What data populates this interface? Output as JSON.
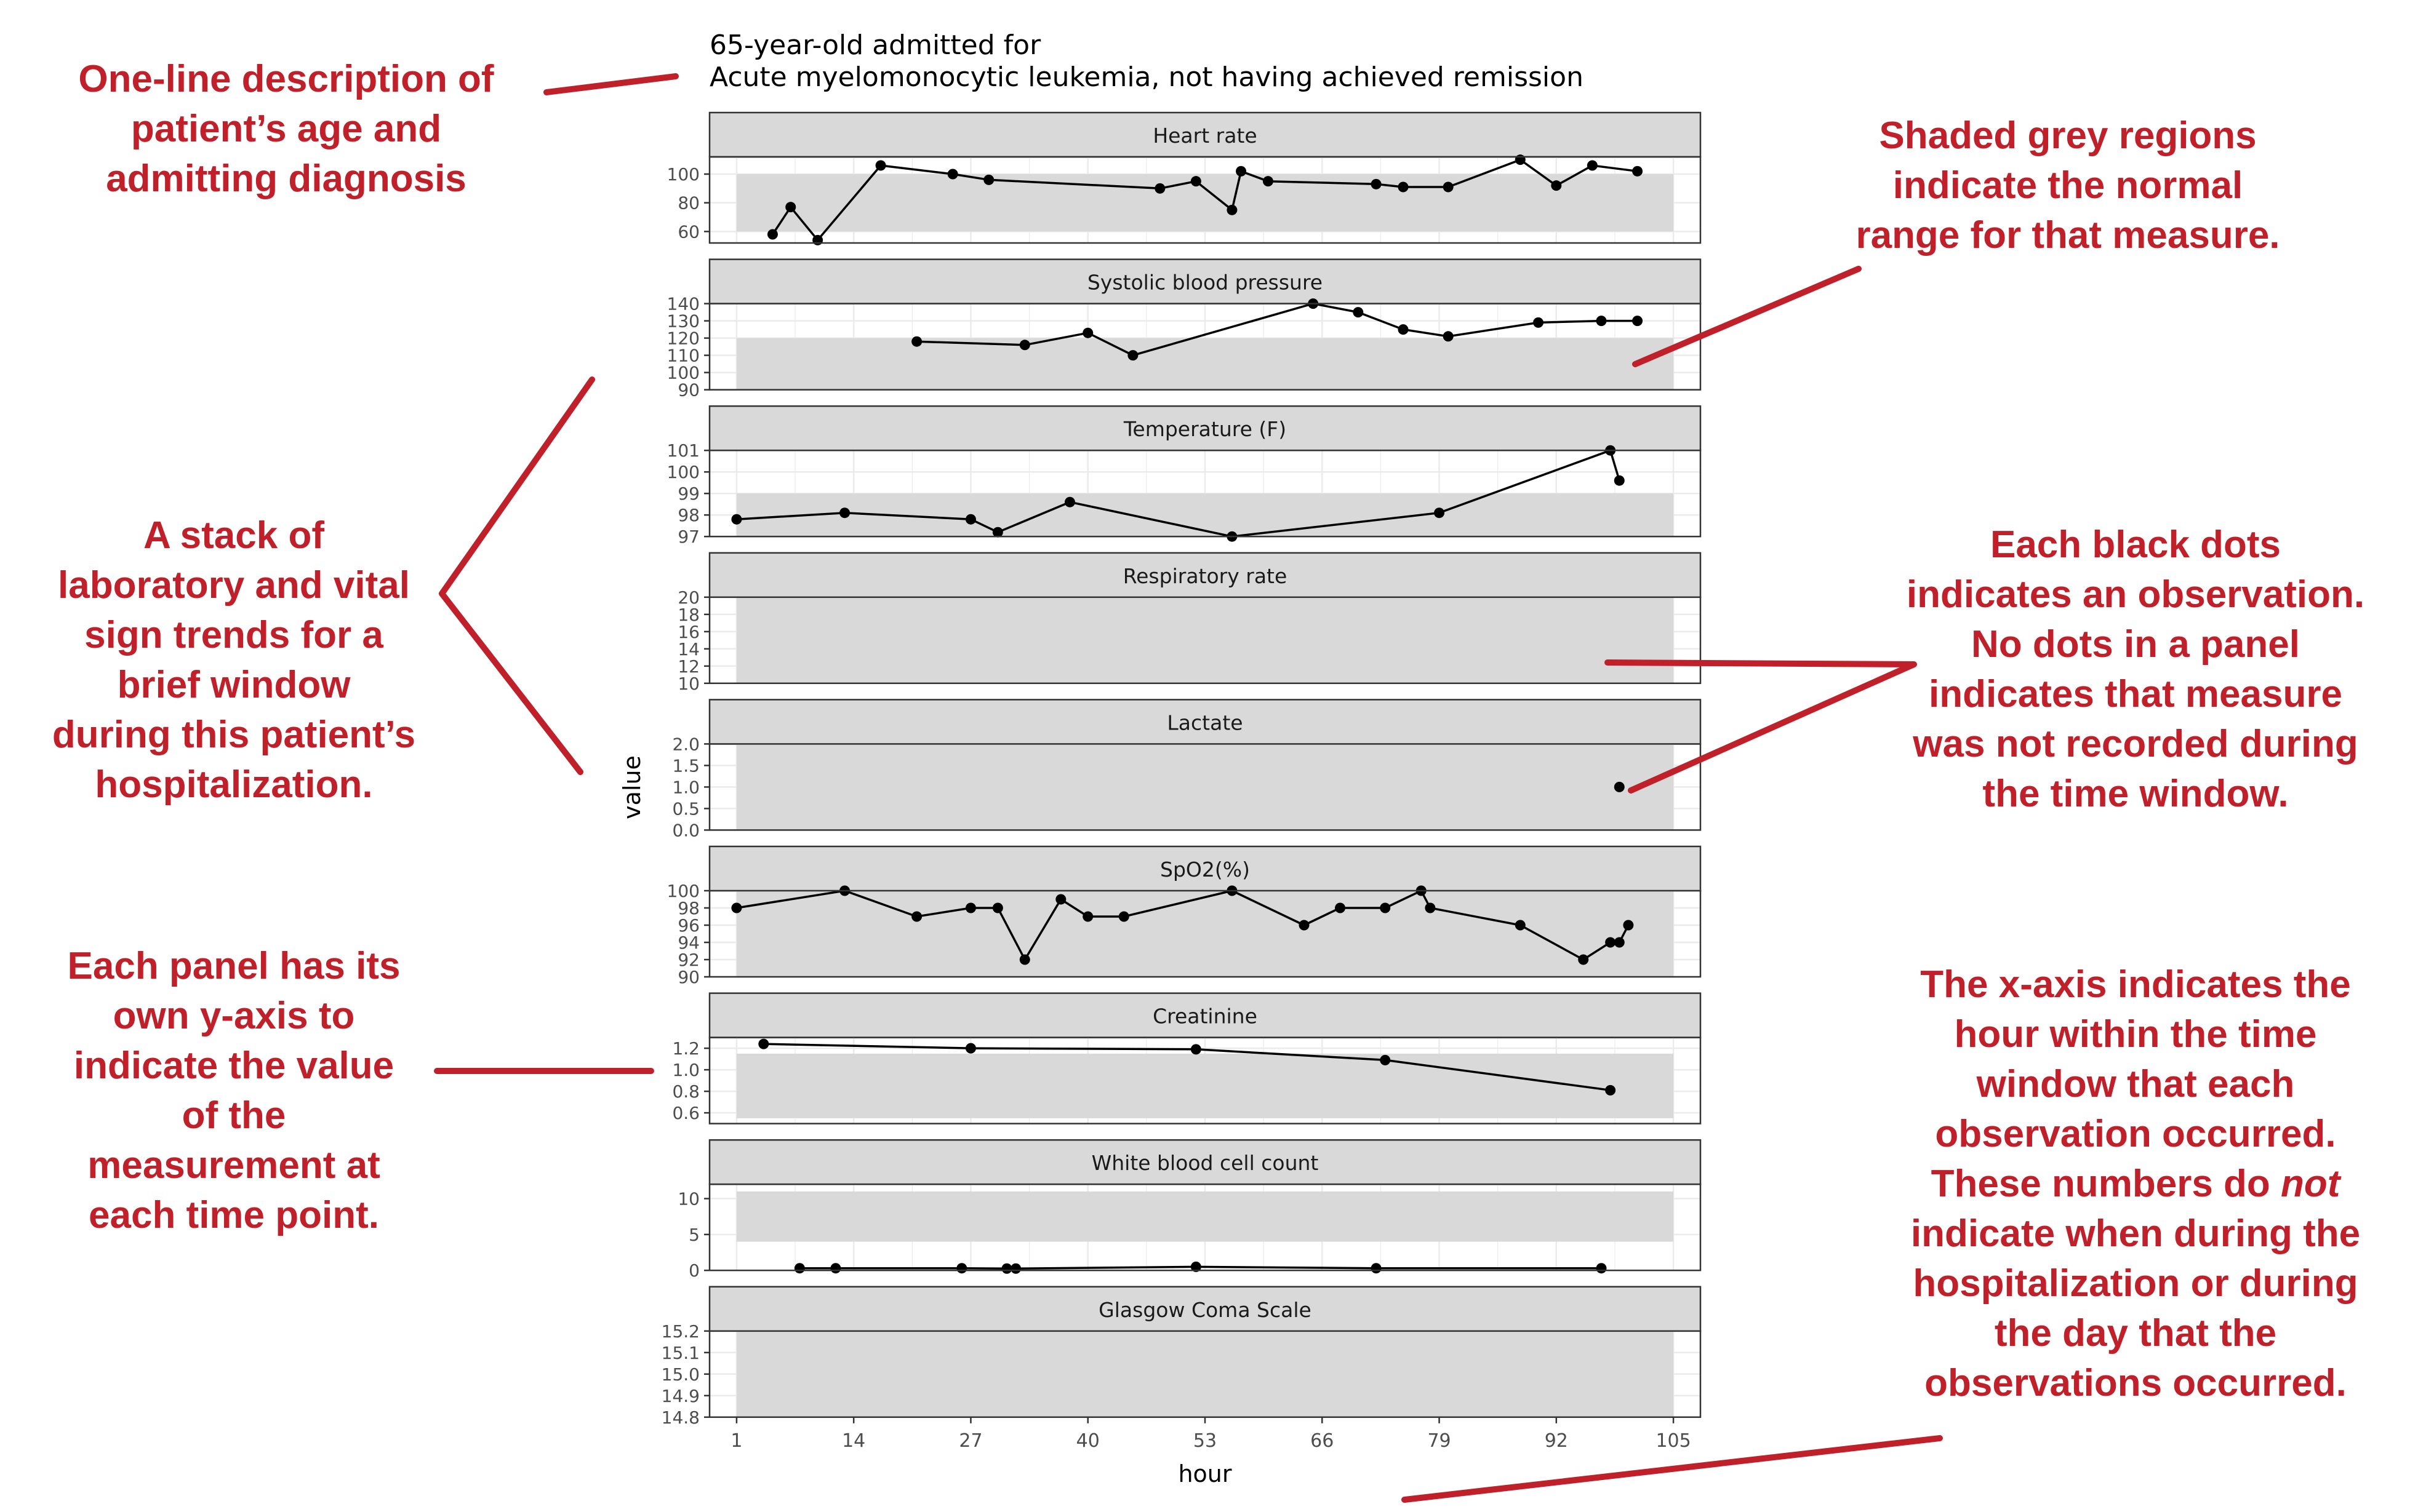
{
  "header": {
    "line1": "65-year-old admitted for",
    "line2": "Acute myelomonocytic leukemia, not having achieved remission"
  },
  "annotations": {
    "description": [
      "One-line description of",
      "patient’s age and",
      "admitting diagnosis"
    ],
    "shaded": [
      "Shaded grey regions",
      "indicate the normal",
      "range for that measure."
    ],
    "stack": [
      "A stack of",
      "laboratory and vital",
      "sign trends for a",
      "brief window",
      "during this patient’s",
      "hospitalization."
    ],
    "dots": [
      "Each black dots",
      "indicates an observation.",
      "No dots in a panel",
      "indicates that measure",
      "was not recorded during",
      "the time window."
    ],
    "yaxis": [
      "Each panel has its",
      "own y-axis to",
      "indicate the value",
      "of the",
      "measurement at",
      "each time point."
    ],
    "xaxis": [
      "The x-axis indicates the",
      "hour within the time",
      "window that each",
      "observation occurred.",
      "These numbers do |not|",
      "indicate when during the",
      "hospitalization or during",
      "the day that the",
      "observations occurred."
    ]
  },
  "colors": {
    "annotation": "#c0202a",
    "strip": "#d9d9d9",
    "normal_range": "#d9d9d9",
    "grid": "#ebebeb",
    "points": "#000000"
  },
  "chart_data": {
    "type": "line",
    "xlabel": "hour",
    "ylabel": "value",
    "x_ticks": [
      1,
      14,
      27,
      40,
      53,
      66,
      79,
      92,
      105
    ],
    "xlim": [
      -2,
      108
    ],
    "grid": true,
    "panels": [
      {
        "title": "Heart rate",
        "ylim": [
          52,
          112
        ],
        "y_ticks": [
          60,
          80,
          100
        ],
        "normal_range": [
          60,
          100
        ],
        "points": [
          [
            5,
            58
          ],
          [
            7,
            77
          ],
          [
            10,
            54
          ],
          [
            17,
            106
          ],
          [
            25,
            100
          ],
          [
            29,
            96
          ],
          [
            48,
            90
          ],
          [
            52,
            95
          ],
          [
            56,
            75
          ],
          [
            57,
            102
          ],
          [
            60,
            95
          ],
          [
            72,
            93
          ],
          [
            75,
            91
          ],
          [
            80,
            91
          ],
          [
            88,
            110
          ],
          [
            92,
            92
          ],
          [
            96,
            106
          ],
          [
            101,
            102
          ]
        ]
      },
      {
        "title": "Systolic blood pressure",
        "ylim": [
          90,
          140
        ],
        "y_ticks": [
          90,
          100,
          110,
          120,
          130,
          140
        ],
        "normal_range": [
          90,
          120
        ],
        "points": [
          [
            21,
            118
          ],
          [
            33,
            116
          ],
          [
            40,
            123
          ],
          [
            45,
            110
          ],
          [
            65,
            140
          ],
          [
            70,
            135
          ],
          [
            75,
            125
          ],
          [
            80,
            121
          ],
          [
            90,
            129
          ],
          [
            97,
            130
          ],
          [
            101,
            130
          ]
        ]
      },
      {
        "title": "Temperature (F)",
        "ylim": [
          97,
          101
        ],
        "y_ticks": [
          97,
          98,
          99,
          100,
          101
        ],
        "tick_labels": [
          "97",
          "98",
          "99",
          "100",
          "101"
        ],
        "normal_range": [
          97,
          99
        ],
        "points": [
          [
            1,
            97.8
          ],
          [
            13,
            98.1
          ],
          [
            27,
            97.8
          ],
          [
            30,
            97.2
          ],
          [
            38,
            98.6
          ],
          [
            56,
            97.0
          ],
          [
            79,
            98.1
          ],
          [
            98,
            101
          ],
          [
            99,
            99.6
          ]
        ]
      },
      {
        "title": "Respiratory rate",
        "ylim": [
          10,
          20
        ],
        "y_ticks": [
          10,
          12,
          14,
          16,
          18,
          20
        ],
        "normal_range": [
          10,
          20
        ],
        "points": []
      },
      {
        "title": "Lactate",
        "ylim": [
          0,
          2
        ],
        "y_ticks": [
          0,
          0.5,
          1,
          1.5,
          2
        ],
        "tick_labels": [
          "0.0",
          "0.5",
          "1.0",
          "1.5",
          "2.0"
        ],
        "normal_range": [
          0,
          2
        ],
        "points": [
          [
            99,
            1.0
          ]
        ]
      },
      {
        "title": "SpO2(%)",
        "ylim": [
          90,
          100
        ],
        "y_ticks": [
          90,
          92,
          94,
          96,
          98,
          100
        ],
        "normal_range": [
          90,
          100
        ],
        "points": [
          [
            1,
            98
          ],
          [
            13,
            100
          ],
          [
            21,
            97
          ],
          [
            27,
            98
          ],
          [
            30,
            98
          ],
          [
            33,
            92
          ],
          [
            37,
            99
          ],
          [
            40,
            97
          ],
          [
            44,
            97
          ],
          [
            56,
            100
          ],
          [
            64,
            96
          ],
          [
            68,
            98
          ],
          [
            73,
            98
          ],
          [
            77,
            100
          ],
          [
            78,
            98
          ],
          [
            88,
            96
          ],
          [
            95,
            92
          ],
          [
            98,
            94
          ],
          [
            99,
            94
          ],
          [
            100,
            96
          ]
        ]
      },
      {
        "title": "Creatinine",
        "ylim": [
          0.5,
          1.3
        ],
        "y_ticks": [
          0.6,
          0.8,
          1.0,
          1.2
        ],
        "tick_labels": [
          "0.6",
          "0.8",
          "1.0",
          "1.2"
        ],
        "normal_range": [
          0.55,
          1.15
        ],
        "points": [
          [
            4,
            1.24
          ],
          [
            27,
            1.2
          ],
          [
            52,
            1.19
          ],
          [
            73,
            1.09
          ],
          [
            98,
            0.81
          ]
        ]
      },
      {
        "title": "White blood cell count",
        "ylim": [
          0,
          12
        ],
        "y_ticks": [
          0,
          5,
          10
        ],
        "normal_range": [
          4,
          11
        ],
        "points": [
          [
            8,
            0.3
          ],
          [
            12,
            0.3
          ],
          [
            26,
            0.3
          ],
          [
            31,
            0.25
          ],
          [
            32,
            0.25
          ],
          [
            52,
            0.5
          ],
          [
            72,
            0.3
          ],
          [
            97,
            0.3
          ]
        ]
      },
      {
        "title": "Glasgow Coma Scale",
        "ylim": [
          14.8,
          15.2
        ],
        "y_ticks": [
          14.8,
          14.9,
          15.0,
          15.1,
          15.2
        ],
        "tick_labels": [
          "14.8",
          "14.9",
          "15.0",
          "15.1",
          "15.2"
        ],
        "normal_range": [
          14.8,
          15.2
        ],
        "points": []
      }
    ]
  }
}
